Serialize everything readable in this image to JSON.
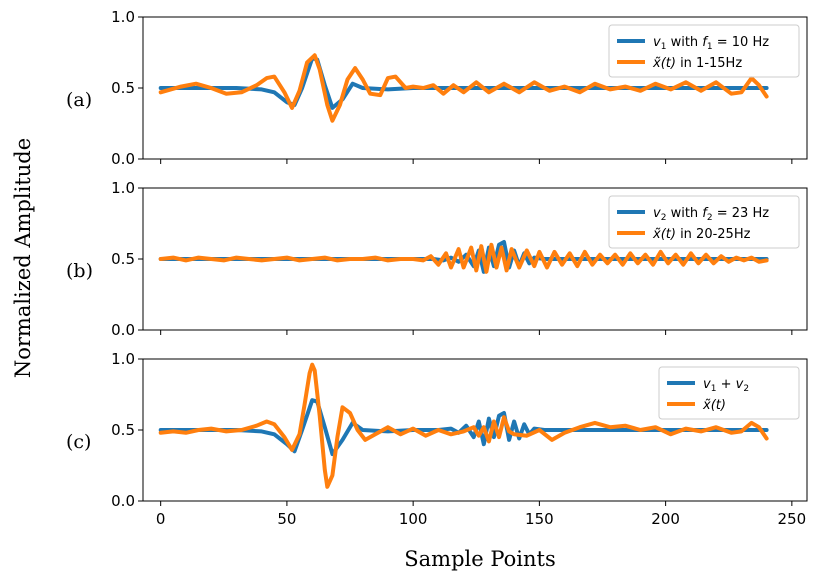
{
  "colors": {
    "signal": "#1f77b4",
    "reconstruction": "#ff7f0e"
  },
  "figure": {
    "ylabel": "Normalized Amplitude",
    "xlabel": "Sample Points",
    "xticks": [
      "0",
      "50",
      "100",
      "150",
      "200",
      "250"
    ],
    "yticks": [
      "0.0",
      "0.5",
      "1.0"
    ]
  },
  "chart_data": [
    {
      "type": "line",
      "panel_label": "(a)",
      "xlim": [
        -7,
        256
      ],
      "ylim": [
        0,
        1
      ],
      "legend_loc": "upper right",
      "legend": [
        {
          "prefix": "v",
          "sub": "1",
          "mid": " with ",
          "fvar": "f",
          "fsub": "1",
          "suffix": " = 10 Hz"
        },
        {
          "pre": "x̃(t)",
          "post": " in 1-15Hz"
        }
      ],
      "series": [
        {
          "name": "v1 with f1 = 10 Hz",
          "x": [
            0,
            10,
            20,
            30,
            40,
            45,
            50,
            53,
            56,
            60,
            62,
            65,
            68,
            72,
            76,
            80,
            90,
            100,
            140,
            200,
            230,
            240
          ],
          "y": [
            0.5,
            0.5,
            0.5,
            0.5,
            0.49,
            0.47,
            0.4,
            0.38,
            0.5,
            0.71,
            0.7,
            0.52,
            0.36,
            0.42,
            0.53,
            0.5,
            0.49,
            0.5,
            0.5,
            0.5,
            0.5,
            0.5
          ]
        },
        {
          "name": "x(t) in 1-15Hz",
          "x": [
            0,
            4,
            8,
            14,
            20,
            26,
            32,
            38,
            42,
            45,
            49,
            52,
            55,
            58,
            61,
            63,
            66,
            68,
            71,
            74,
            77,
            80,
            83,
            87,
            90,
            93,
            97,
            100,
            104,
            108,
            112,
            116,
            120,
            125,
            130,
            136,
            142,
            148,
            154,
            160,
            166,
            172,
            178,
            184,
            190,
            196,
            202,
            208,
            214,
            220,
            226,
            230,
            234,
            237,
            240
          ],
          "y": [
            0.47,
            0.49,
            0.51,
            0.53,
            0.5,
            0.46,
            0.47,
            0.52,
            0.57,
            0.58,
            0.47,
            0.36,
            0.48,
            0.68,
            0.73,
            0.63,
            0.38,
            0.27,
            0.38,
            0.56,
            0.64,
            0.56,
            0.46,
            0.45,
            0.57,
            0.58,
            0.5,
            0.51,
            0.5,
            0.52,
            0.46,
            0.52,
            0.47,
            0.54,
            0.47,
            0.53,
            0.47,
            0.54,
            0.48,
            0.51,
            0.47,
            0.53,
            0.49,
            0.51,
            0.48,
            0.53,
            0.49,
            0.54,
            0.48,
            0.54,
            0.46,
            0.47,
            0.57,
            0.52,
            0.44
          ]
        }
      ]
    },
    {
      "type": "line",
      "panel_label": "(b)",
      "xlim": [
        -7,
        256
      ],
      "ylim": [
        0,
        1
      ],
      "legend_loc": "upper right",
      "legend": [
        {
          "prefix": "v",
          "sub": "2",
          "mid": " with ",
          "fvar": "f",
          "fsub": "2",
          "suffix": " = 23 Hz"
        },
        {
          "pre": "x̃(t)",
          "post": " in 20-25Hz"
        }
      ],
      "series": [
        {
          "name": "v2 with f2 = 23 Hz",
          "x": [
            0,
            100,
            108,
            112,
            115,
            118,
            121,
            124,
            126,
            128,
            130,
            132,
            134,
            136,
            138,
            140,
            142,
            144,
            146,
            148,
            152,
            160,
            240
          ],
          "y": [
            0.5,
            0.5,
            0.5,
            0.49,
            0.51,
            0.48,
            0.53,
            0.45,
            0.56,
            0.41,
            0.58,
            0.45,
            0.6,
            0.62,
            0.44,
            0.56,
            0.45,
            0.54,
            0.47,
            0.51,
            0.5,
            0.5,
            0.5
          ]
        },
        {
          "name": "x(t) in 20-25Hz",
          "x": [
            0,
            5,
            10,
            15,
            20,
            25,
            30,
            35,
            40,
            45,
            50,
            55,
            60,
            65,
            70,
            75,
            80,
            85,
            90,
            95,
            100,
            104,
            107,
            110,
            113,
            115,
            118,
            120,
            123,
            125,
            127,
            129,
            131,
            133,
            135,
            137,
            139,
            142,
            145,
            148,
            150,
            153,
            156,
            159,
            162,
            165,
            168,
            171,
            174,
            177,
            180,
            183,
            186,
            189,
            192,
            195,
            198,
            201,
            204,
            207,
            210,
            213,
            216,
            219,
            222,
            225,
            228,
            231,
            234,
            237,
            240
          ],
          "y": [
            0.5,
            0.51,
            0.49,
            0.51,
            0.5,
            0.49,
            0.51,
            0.5,
            0.49,
            0.5,
            0.51,
            0.49,
            0.5,
            0.51,
            0.49,
            0.5,
            0.5,
            0.51,
            0.49,
            0.5,
            0.5,
            0.49,
            0.52,
            0.46,
            0.54,
            0.44,
            0.57,
            0.44,
            0.58,
            0.42,
            0.59,
            0.41,
            0.6,
            0.44,
            0.58,
            0.42,
            0.57,
            0.44,
            0.56,
            0.45,
            0.55,
            0.44,
            0.55,
            0.46,
            0.54,
            0.45,
            0.55,
            0.46,
            0.53,
            0.47,
            0.53,
            0.46,
            0.54,
            0.47,
            0.53,
            0.46,
            0.55,
            0.47,
            0.53,
            0.46,
            0.54,
            0.47,
            0.53,
            0.47,
            0.52,
            0.48,
            0.51,
            0.49,
            0.51,
            0.48,
            0.49
          ]
        }
      ]
    },
    {
      "type": "line",
      "panel_label": "(c)",
      "xlim": [
        -7,
        256
      ],
      "ylim": [
        0,
        1
      ],
      "legend_loc": "upper right",
      "legend": [
        {
          "prefix": "v",
          "sub": "1",
          "mid": " + ",
          "fvar": "v",
          "fsub": "2",
          "suffix": ""
        },
        {
          "pre": "x̃(t)",
          "post": ""
        }
      ],
      "series": [
        {
          "name": "v1 + v2",
          "x": [
            0,
            10,
            20,
            30,
            40,
            45,
            50,
            53,
            56,
            60,
            62,
            65,
            68,
            72,
            76,
            80,
            90,
            100,
            110,
            115,
            118,
            121,
            124,
            126,
            128,
            130,
            132,
            134,
            136,
            138,
            140,
            142,
            144,
            146,
            148,
            152,
            160,
            240
          ],
          "y": [
            0.5,
            0.5,
            0.5,
            0.5,
            0.49,
            0.47,
            0.4,
            0.35,
            0.5,
            0.71,
            0.7,
            0.52,
            0.33,
            0.43,
            0.55,
            0.5,
            0.49,
            0.5,
            0.5,
            0.51,
            0.48,
            0.53,
            0.45,
            0.56,
            0.4,
            0.58,
            0.45,
            0.6,
            0.62,
            0.43,
            0.56,
            0.44,
            0.54,
            0.47,
            0.51,
            0.5,
            0.5,
            0.5
          ]
        },
        {
          "name": "x(t)",
          "x": [
            0,
            5,
            10,
            15,
            20,
            26,
            32,
            38,
            42,
            45,
            49,
            52,
            55,
            57,
            59,
            60,
            61,
            63,
            65,
            66,
            68,
            70,
            72,
            75,
            78,
            81,
            85,
            90,
            95,
            100,
            105,
            110,
            115,
            120,
            124,
            126,
            128,
            130,
            132,
            134,
            136,
            138,
            140,
            145,
            150,
            155,
            160,
            166,
            172,
            178,
            184,
            190,
            196,
            202,
            208,
            214,
            220,
            226,
            230,
            234,
            237,
            240
          ],
          "y": [
            0.48,
            0.49,
            0.48,
            0.5,
            0.51,
            0.49,
            0.5,
            0.53,
            0.56,
            0.54,
            0.45,
            0.36,
            0.47,
            0.68,
            0.9,
            0.96,
            0.92,
            0.6,
            0.22,
            0.1,
            0.18,
            0.45,
            0.66,
            0.62,
            0.5,
            0.43,
            0.47,
            0.52,
            0.47,
            0.51,
            0.46,
            0.5,
            0.47,
            0.49,
            0.52,
            0.46,
            0.52,
            0.42,
            0.56,
            0.45,
            0.59,
            0.49,
            0.47,
            0.46,
            0.5,
            0.43,
            0.48,
            0.52,
            0.55,
            0.52,
            0.53,
            0.5,
            0.52,
            0.47,
            0.51,
            0.49,
            0.52,
            0.48,
            0.49,
            0.55,
            0.52,
            0.44
          ]
        }
      ]
    }
  ]
}
